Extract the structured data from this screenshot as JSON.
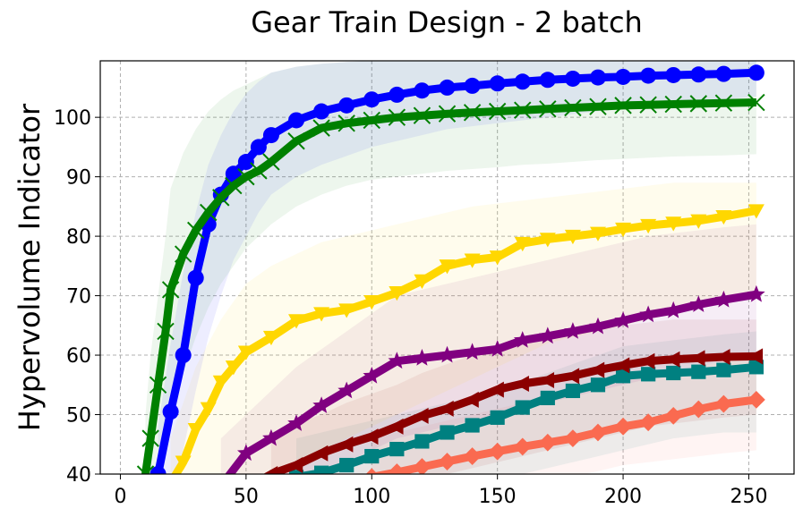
{
  "chart_data": {
    "type": "line",
    "title": "Gear Train Design - 2 batch",
    "xlabel": "",
    "ylabel": "Hypervolume Indicator",
    "xlim": [
      -8,
      268
    ],
    "ylim": [
      40,
      109.5
    ],
    "x_ticks": [
      0,
      50,
      100,
      150,
      200,
      250
    ],
    "x_tick_labels": [
      "0",
      "50",
      "100",
      "150",
      "200",
      "250"
    ],
    "y_ticks": [
      40,
      50,
      60,
      70,
      80,
      90,
      100
    ],
    "y_tick_labels": [
      "40",
      "50",
      "60",
      "70",
      "80",
      "90",
      "100"
    ],
    "grid": true,
    "legend": "none",
    "series": [
      {
        "color": "#fa6a50",
        "marker": "diamond",
        "x": [
          100,
          110,
          120,
          130,
          140,
          150,
          160,
          170,
          180,
          190,
          200,
          210,
          220,
          230,
          240,
          253
        ],
        "y": [
          39.5,
          40.3,
          41.2,
          42.1,
          43,
          43.8,
          44.6,
          45.3,
          46,
          47,
          48,
          48.7,
          49.8,
          50.9,
          51.8,
          52.5
        ],
        "band_lower": [
          37,
          37,
          37,
          37,
          37,
          37,
          38,
          38.5,
          39.5,
          40.5,
          41.5,
          42,
          42.5,
          43,
          43.5,
          44
        ],
        "band_upper": [
          46,
          47,
          48,
          49,
          50,
          51,
          52,
          53,
          54,
          55,
          56,
          56.5,
          57,
          58,
          59,
          60
        ]
      },
      {
        "color": "#008080",
        "marker": "square",
        "x": [
          70,
          80,
          90,
          100,
          110,
          120,
          130,
          140,
          150,
          160,
          170,
          180,
          190,
          200,
          210,
          220,
          230,
          240,
          253
        ],
        "y": [
          39.5,
          40.2,
          41.5,
          43,
          44.2,
          45.5,
          47,
          48.2,
          49.5,
          51.2,
          52.8,
          54,
          55,
          56.5,
          56.8,
          57,
          57.2,
          57.5,
          58
        ],
        "band_lower": [
          34,
          34.5,
          35,
          35.5,
          36,
          36.5,
          37,
          38,
          39,
          40,
          41,
          42,
          43,
          44,
          45,
          46,
          46.5,
          47,
          47
        ],
        "band_upper": [
          46,
          47,
          48,
          49,
          50,
          51,
          52,
          53,
          54,
          55.5,
          57,
          58.5,
          60,
          61.5,
          62,
          62.5,
          63,
          63.5,
          64
        ]
      },
      {
        "color": "#8b0000",
        "marker": "triangle-left",
        "x": [
          60,
          70,
          80,
          90,
          100,
          110,
          120,
          130,
          140,
          150,
          160,
          170,
          180,
          190,
          200,
          210,
          220,
          230,
          240,
          253
        ],
        "y": [
          40,
          41.5,
          43.5,
          45,
          46.3,
          48,
          49.8,
          51,
          52.5,
          54.2,
          55.2,
          55.8,
          56.5,
          57.5,
          58.3,
          59,
          59.3,
          59.5,
          59.7,
          59.8
        ],
        "band_lower": [
          35,
          35.5,
          36,
          36.5,
          37,
          38,
          39,
          40,
          41,
          42,
          43,
          44,
          45,
          46,
          47,
          48,
          48.5,
          49,
          49.5,
          50
        ],
        "band_upper": [
          47,
          48.5,
          50,
          52,
          53.5,
          55,
          57,
          58.5,
          60,
          61.5,
          62.5,
          63.5,
          64,
          64.5,
          65,
          65.5,
          66,
          66,
          66,
          66
        ]
      },
      {
        "color": "#800080",
        "marker": "star",
        "x": [
          40,
          50,
          60,
          70,
          80,
          90,
          100,
          110,
          120,
          130,
          140,
          150,
          160,
          170,
          180,
          190,
          200,
          210,
          220,
          230,
          240,
          253
        ],
        "y": [
          38,
          43.5,
          46,
          48.5,
          51.5,
          54,
          56.5,
          59,
          59.5,
          60,
          60.5,
          61,
          62.5,
          63.2,
          64,
          64.8,
          65.8,
          66.8,
          67.5,
          68.5,
          69.3,
          70.2
        ],
        "band_lower": [
          33,
          35,
          36.5,
          38,
          40,
          42,
          44,
          46,
          47,
          48,
          49,
          50,
          51,
          52,
          53,
          54,
          55,
          56,
          57,
          58,
          59,
          60
        ],
        "band_upper": [
          46,
          50,
          54,
          58,
          61,
          64,
          67,
          70,
          71,
          72,
          73,
          74,
          75,
          76,
          77,
          78,
          79,
          80,
          80.5,
          81,
          81.5,
          82
        ]
      },
      {
        "color": "#ffd700",
        "marker": "triangle-down",
        "x": [
          20,
          25,
          30,
          35,
          40,
          45,
          50,
          60,
          70,
          80,
          90,
          100,
          110,
          120,
          130,
          140,
          150,
          160,
          170,
          180,
          190,
          200,
          210,
          220,
          230,
          240,
          253
        ],
        "y": [
          38.5,
          42,
          47.5,
          51,
          55.5,
          58,
          60.5,
          63,
          65.8,
          67,
          67.6,
          69,
          70.5,
          72.5,
          75,
          76,
          76.5,
          78.8,
          79.5,
          80,
          80.5,
          81.2,
          81.8,
          82.2,
          82.6,
          83.3,
          84.3
        ],
        "band_lower": [
          32,
          33,
          34,
          35,
          36,
          37,
          38,
          40,
          42,
          44,
          46,
          48,
          50,
          52,
          54,
          56,
          58,
          60,
          62,
          63,
          64,
          65,
          66,
          67,
          68,
          69,
          70
        ],
        "band_upper": [
          46,
          52,
          58,
          62,
          66,
          69,
          72,
          75,
          77,
          79,
          80,
          81,
          82,
          83,
          84,
          85,
          85.5,
          86,
          86.5,
          87,
          87.5,
          88,
          88.5,
          89,
          89,
          89,
          89
        ]
      },
      {
        "color": "#0000ff",
        "marker": "circle",
        "x": [
          15,
          20,
          25,
          30,
          35,
          40,
          45,
          50,
          55,
          60,
          70,
          80,
          90,
          100,
          110,
          120,
          130,
          140,
          150,
          160,
          170,
          180,
          190,
          200,
          210,
          220,
          230,
          240,
          253
        ],
        "y": [
          40,
          50.5,
          60,
          73,
          82,
          87,
          90.5,
          92.5,
          95,
          97,
          99.5,
          101,
          102,
          103,
          103.8,
          104.5,
          105,
          105.3,
          105.7,
          106,
          106.3,
          106.5,
          106.7,
          106.8,
          107,
          107.1,
          107.2,
          107.3,
          107.5
        ],
        "band_lower": [
          30,
          36,
          44,
          54,
          63,
          70,
          76,
          80,
          84,
          87,
          90,
          92,
          93.5,
          95,
          96,
          97,
          98,
          98.5,
          99,
          99.5,
          100,
          100.5,
          101,
          101.5,
          102,
          102.3,
          102.6,
          103,
          103.5
        ],
        "band_upper": [
          48,
          62,
          74,
          84,
          92,
          97,
          101,
          104,
          106,
          107.5,
          108.5,
          109,
          109.3,
          109.5,
          109.5,
          109.5,
          109.5,
          109.5,
          109.5,
          109.5,
          109.5,
          109.5,
          109.5,
          109.5,
          109.5,
          109.5,
          109.5,
          109.5,
          109.5
        ]
      },
      {
        "color": "#008000",
        "marker": "x",
        "x": [
          10,
          12,
          15,
          18,
          20,
          25,
          30,
          35,
          40,
          45,
          50,
          55,
          60,
          70,
          80,
          90,
          100,
          110,
          120,
          130,
          140,
          150,
          160,
          170,
          180,
          190,
          200,
          210,
          220,
          230,
          240,
          253
        ],
        "y": [
          40,
          46,
          55,
          64,
          71,
          77,
          81,
          84,
          86.5,
          88.5,
          90,
          91,
          92.5,
          96,
          98.2,
          99,
          99.5,
          100,
          100.3,
          100.6,
          100.8,
          101,
          101.2,
          101.4,
          101.6,
          101.8,
          102,
          102.1,
          102.2,
          102.3,
          102.4,
          102.5
        ],
        "band_lower": [
          30,
          33,
          38,
          44,
          50,
          57,
          63,
          68,
          72,
          75,
          78,
          80,
          82,
          85,
          87,
          88.5,
          89.5,
          90,
          90.5,
          91,
          91.3,
          91.6,
          92,
          92.2,
          92.5,
          92.8,
          93,
          93.2,
          93.4,
          93.5,
          93.6,
          93.8
        ],
        "band_upper": [
          50,
          60,
          70,
          80,
          88,
          94,
          98,
          101,
          103,
          104.5,
          105.5,
          106.5,
          107.5,
          108.5,
          109,
          109.3,
          109.5,
          109.5,
          109.5,
          109.5,
          109.5,
          109.5,
          109.5,
          109.5,
          109.5,
          109.5,
          109.5,
          109.5,
          109.5,
          109.5,
          109.5,
          109.5
        ]
      }
    ]
  }
}
